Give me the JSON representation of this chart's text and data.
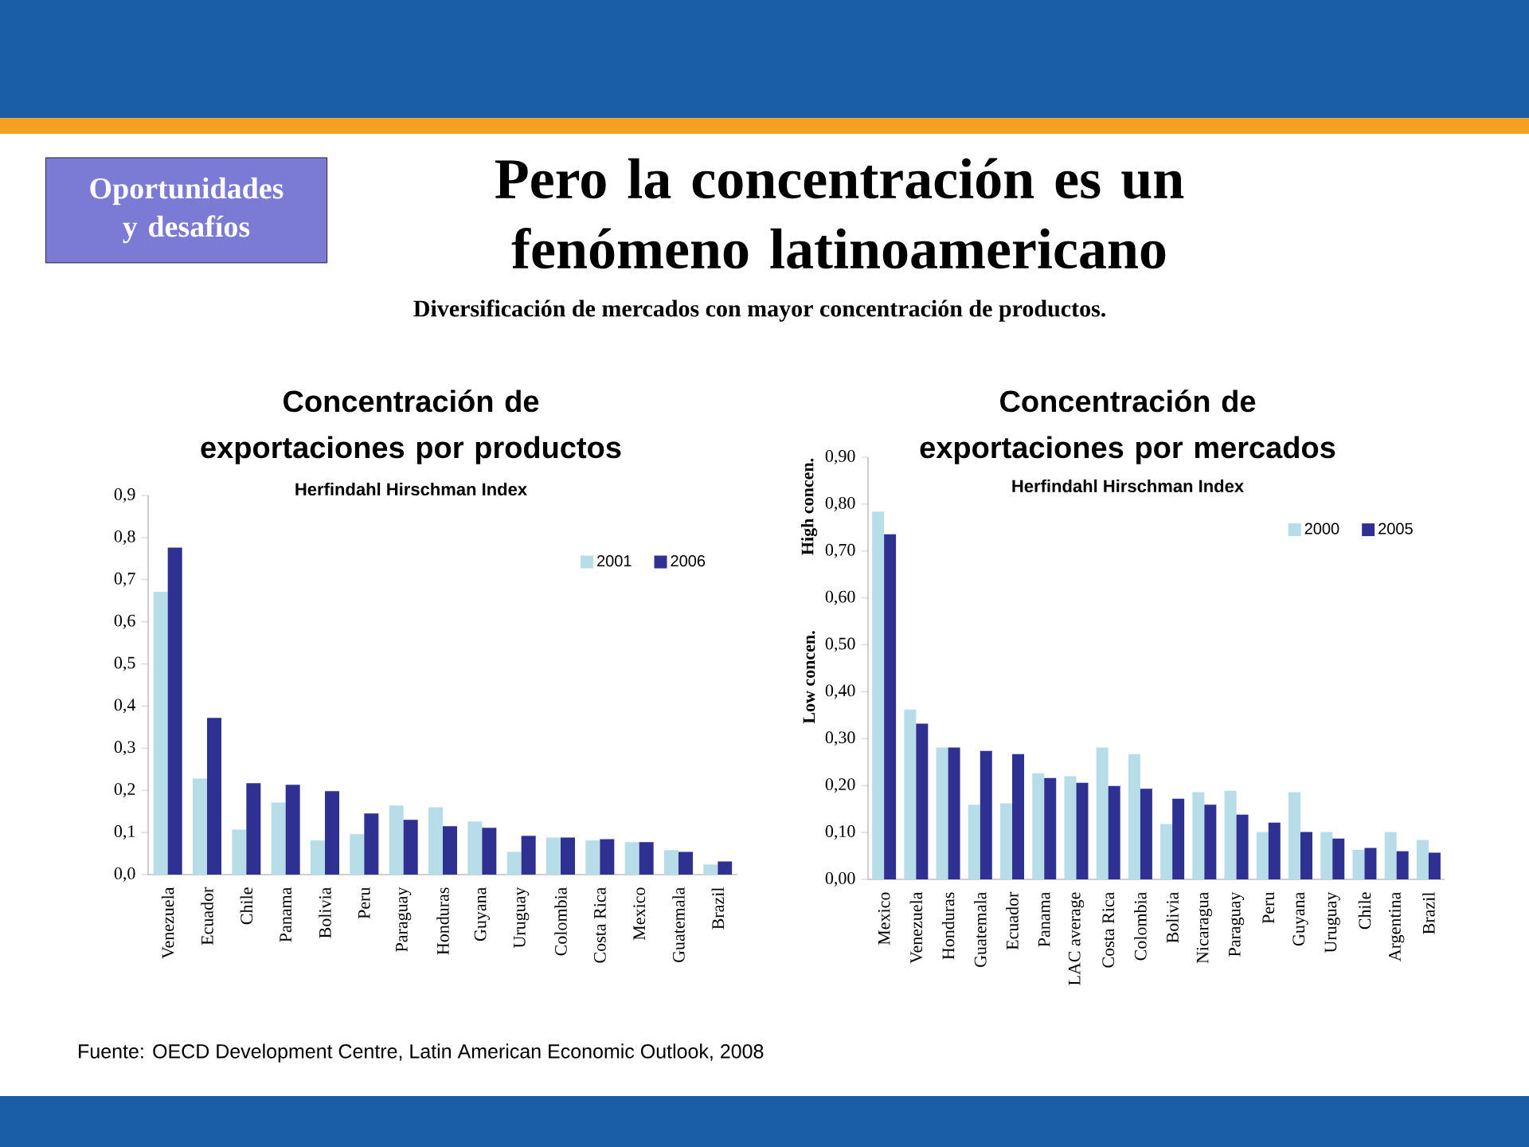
{
  "chart_data": [
    {
      "type": "bar",
      "title": "Concentración de exportaciones por productos",
      "subtitle": "Herfindahl Hirschman Index",
      "categories": [
        "Venezuela",
        "Ecuador",
        "Chile",
        "Panama",
        "Bolivia",
        "Peru",
        "Paraguay",
        "Honduras",
        "Guyana",
        "Uruguay",
        "Colombia",
        "Costa Rica",
        "Mexico",
        "Guatemala",
        "Brazil"
      ],
      "series": [
        {
          "name": "2001",
          "color": "#b7dde8",
          "values": [
            0.671,
            0.228,
            0.107,
            0.171,
            0.081,
            0.096,
            0.164,
            0.16,
            0.126,
            0.054,
            0.088,
            0.081,
            0.077,
            0.058,
            0.024
          ]
        },
        {
          "name": "2006",
          "color": "#2e3192",
          "values": [
            0.776,
            0.372,
            0.217,
            0.213,
            0.198,
            0.145,
            0.13,
            0.115,
            0.111,
            0.092,
            0.088,
            0.084,
            0.077,
            0.054,
            0.031
          ]
        }
      ],
      "ylim": [
        0,
        0.9
      ],
      "yticks": [
        {
          "value": 0,
          "label": "0,0"
        },
        {
          "value": 0.1,
          "label": "0,1"
        },
        {
          "value": 0.2,
          "label": "0,2"
        },
        {
          "value": 0.3,
          "label": "0,3"
        },
        {
          "value": 0.4,
          "label": "0,4"
        },
        {
          "value": 0.5,
          "label": "0,5"
        },
        {
          "value": 0.6,
          "label": "0,6"
        },
        {
          "value": 0.7,
          "label": "0,7"
        },
        {
          "value": 0.8,
          "label": "0,8"
        },
        {
          "value": 0.9,
          "label": "0,9"
        }
      ],
      "legend": "top right",
      "annotations": [
        "Oportunidades y desafíos",
        "Pero la concentración es un fenómeno latinoamericano",
        "Diversificación de mercados con mayor concentración de productos.",
        "Fuente: OECD Development Centre, Latin American Economic Outlook, 2008"
      ]
    },
    {
      "type": "bar",
      "title": "Concentración de exportaciones por mercados",
      "subtitle": "Herfindahl Hirschman Index",
      "categories": [
        "Mexico",
        "Venezuela",
        "Honduras",
        "Guatemala",
        "Ecuador",
        "Panama",
        "LAC average",
        "Costa Rica",
        "Colombia",
        "Bolivia",
        "Nicaragua",
        "Paraguay",
        "Peru",
        "Guyana",
        "Uruguay",
        "Chile",
        "Argentina",
        "Brazil"
      ],
      "series": [
        {
          "name": "2000",
          "color": "#b7dde8",
          "values": [
            0.784,
            0.362,
            0.281,
            0.159,
            0.162,
            0.226,
            0.22,
            0.281,
            0.267,
            0.118,
            0.186,
            0.189,
            0.101,
            0.186,
            0.101,
            0.063,
            0.101,
            0.084
          ]
        },
        {
          "name": "2005",
          "color": "#2e3192",
          "values": [
            0.736,
            0.332,
            0.281,
            0.274,
            0.267,
            0.216,
            0.206,
            0.199,
            0.193,
            0.172,
            0.159,
            0.138,
            0.121,
            0.101,
            0.087,
            0.067,
            0.06,
            0.057
          ]
        }
      ],
      "ylim": [
        0,
        0.9
      ],
      "yticks": [
        {
          "value": 0,
          "label": "0,00"
        },
        {
          "value": 0.1,
          "label": "0,10"
        },
        {
          "value": 0.2,
          "label": "0,20"
        },
        {
          "value": 0.3,
          "label": "0,30"
        },
        {
          "value": 0.4,
          "label": "0,40"
        },
        {
          "value": 0.5,
          "label": "0,50"
        },
        {
          "value": 0.6,
          "label": "0,60"
        },
        {
          "value": 0.7,
          "label": "0,70"
        },
        {
          "value": 0.8,
          "label": "0,80"
        },
        {
          "value": 0.9,
          "label": "0,90"
        }
      ],
      "legend": "top right",
      "annotations": [
        "High concen.",
        "Low concen."
      ]
    }
  ]
}
